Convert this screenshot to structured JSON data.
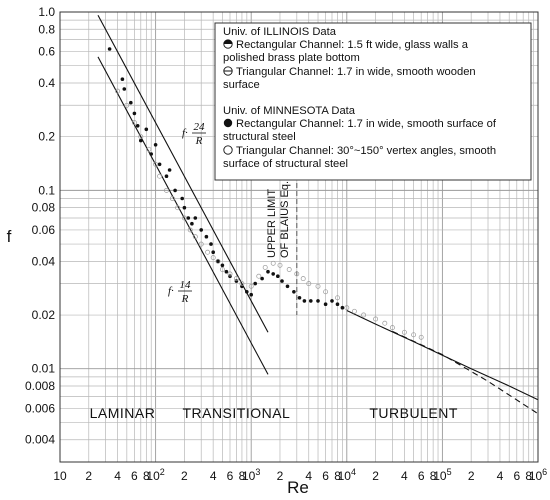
{
  "chart_data": {
    "type": "scatter",
    "x_scale": "log",
    "y_scale": "log",
    "xlabel": "Re",
    "ylabel": "f",
    "xlim": [
      10,
      1000000
    ],
    "ylim": [
      0.003,
      1.0
    ],
    "grid": true,
    "x_tick_labels": [
      {
        "value": 10,
        "label": "10"
      },
      {
        "value": 20,
        "label": "2"
      },
      {
        "value": 40,
        "label": "4"
      },
      {
        "value": 60,
        "label": "6"
      },
      {
        "value": 80,
        "label": "8"
      },
      {
        "value": 100,
        "label": "10",
        "sup": "2"
      },
      {
        "value": 200,
        "label": "2"
      },
      {
        "value": 400,
        "label": "4"
      },
      {
        "value": 600,
        "label": "6"
      },
      {
        "value": 800,
        "label": "8"
      },
      {
        "value": 1000,
        "label": "10",
        "sup": "3"
      },
      {
        "value": 2000,
        "label": "2"
      },
      {
        "value": 4000,
        "label": "4"
      },
      {
        "value": 6000,
        "label": "6"
      },
      {
        "value": 8000,
        "label": "8"
      },
      {
        "value": 10000,
        "label": "10",
        "sup": "4"
      },
      {
        "value": 20000,
        "label": "2"
      },
      {
        "value": 40000,
        "label": "4"
      },
      {
        "value": 60000,
        "label": "6"
      },
      {
        "value": 80000,
        "label": "8"
      },
      {
        "value": 100000,
        "label": "10",
        "sup": "5"
      },
      {
        "value": 200000,
        "label": "2"
      },
      {
        "value": 400000,
        "label": "4"
      },
      {
        "value": 600000,
        "label": "6"
      },
      {
        "value": 800000,
        "label": "8"
      },
      {
        "value": 1000000,
        "label": "10",
        "sup": "6"
      }
    ],
    "y_tick_labels": [
      {
        "value": 1.0,
        "label": "1.0"
      },
      {
        "value": 0.8,
        "label": "0.8"
      },
      {
        "value": 0.6,
        "label": "0.6"
      },
      {
        "value": 0.4,
        "label": "0.4"
      },
      {
        "value": 0.2,
        "label": "0.2"
      },
      {
        "value": 0.1,
        "label": "0.1"
      },
      {
        "value": 0.08,
        "label": "0.08"
      },
      {
        "value": 0.06,
        "label": "0.06"
      },
      {
        "value": 0.04,
        "label": "0.04"
      },
      {
        "value": 0.02,
        "label": "0.02"
      },
      {
        "value": 0.01,
        "label": "0.01"
      },
      {
        "value": 0.008,
        "label": "0.008"
      },
      {
        "value": 0.006,
        "label": "0.006"
      },
      {
        "value": 0.004,
        "label": "0.004"
      }
    ],
    "curves": [
      {
        "id": "f24",
        "style": "solid",
        "points": [
          [
            25,
            0.96
          ],
          [
            1500,
            0.016
          ]
        ]
      },
      {
        "id": "f14",
        "style": "solid",
        "points": [
          [
            25,
            0.56
          ],
          [
            1500,
            0.0093
          ]
        ]
      },
      {
        "id": "blasius",
        "style": "solid",
        "points": [
          [
            10000,
            0.0212
          ],
          [
            20000,
            0.0178
          ],
          [
            50000,
            0.0142
          ],
          [
            100000,
            0.0119
          ],
          [
            200000,
            0.01
          ],
          [
            500000,
            0.008
          ],
          [
            1000000,
            0.0067
          ]
        ]
      },
      {
        "id": "turbulent",
        "style": "dashed",
        "points": [
          [
            30000,
            0.0162
          ],
          [
            100000,
            0.012
          ],
          [
            300000,
            0.0085
          ],
          [
            1000000,
            0.0056
          ]
        ]
      }
    ],
    "series": [
      {
        "name": "Univ. of MINNESOTA Rectangular Channel",
        "marker": "filled-circle",
        "points": [
          [
            33,
            0.62
          ],
          [
            45,
            0.42
          ],
          [
            47,
            0.37
          ],
          [
            55,
            0.31
          ],
          [
            60,
            0.27
          ],
          [
            65,
            0.23
          ],
          [
            70,
            0.19
          ],
          [
            80,
            0.22
          ],
          [
            90,
            0.16
          ],
          [
            100,
            0.18
          ],
          [
            110,
            0.14
          ],
          [
            130,
            0.12
          ],
          [
            140,
            0.13
          ],
          [
            160,
            0.1
          ],
          [
            190,
            0.09
          ],
          [
            200,
            0.08
          ],
          [
            220,
            0.07
          ],
          [
            240,
            0.065
          ],
          [
            260,
            0.07
          ],
          [
            300,
            0.06
          ],
          [
            340,
            0.055
          ],
          [
            380,
            0.05
          ],
          [
            400,
            0.045
          ],
          [
            450,
            0.04
          ],
          [
            500,
            0.038
          ],
          [
            550,
            0.035
          ],
          [
            600,
            0.033
          ],
          [
            700,
            0.031
          ],
          [
            800,
            0.029
          ],
          [
            900,
            0.027
          ],
          [
            1000,
            0.026
          ],
          [
            1100,
            0.03
          ],
          [
            1300,
            0.032
          ],
          [
            1500,
            0.035
          ],
          [
            1700,
            0.034
          ],
          [
            1900,
            0.033
          ],
          [
            2100,
            0.031
          ],
          [
            2400,
            0.029
          ],
          [
            2800,
            0.027
          ],
          [
            3200,
            0.025
          ],
          [
            3600,
            0.024
          ],
          [
            4200,
            0.024
          ],
          [
            5000,
            0.024
          ],
          [
            6000,
            0.023
          ],
          [
            7000,
            0.024
          ],
          [
            8000,
            0.023
          ],
          [
            9000,
            0.022
          ]
        ]
      },
      {
        "name": "Univ. of MINNESOTA Triangular Channel",
        "marker": "open-circle",
        "points": [
          [
            40,
            0.36
          ],
          [
            50,
            0.3
          ],
          [
            60,
            0.24
          ],
          [
            70,
            0.2
          ],
          [
            85,
            0.17
          ],
          [
            100,
            0.14
          ],
          [
            110,
            0.12
          ],
          [
            130,
            0.1
          ],
          [
            150,
            0.09
          ],
          [
            170,
            0.08
          ],
          [
            200,
            0.07
          ],
          [
            230,
            0.06
          ],
          [
            260,
            0.055
          ],
          [
            300,
            0.05
          ],
          [
            350,
            0.045
          ],
          [
            400,
            0.042
          ],
          [
            450,
            0.04
          ],
          [
            500,
            0.036
          ],
          [
            600,
            0.034
          ],
          [
            700,
            0.032
          ],
          [
            800,
            0.03
          ],
          [
            1000,
            0.029
          ],
          [
            1200,
            0.033
          ],
          [
            1400,
            0.037
          ],
          [
            1700,
            0.039
          ],
          [
            2000,
            0.038
          ],
          [
            2500,
            0.036
          ],
          [
            3000,
            0.034
          ],
          [
            3500,
            0.032
          ],
          [
            4000,
            0.03
          ],
          [
            5000,
            0.029
          ],
          [
            6000,
            0.027
          ],
          [
            8000,
            0.025
          ],
          [
            10000,
            0.022
          ],
          [
            12000,
            0.021
          ],
          [
            15000,
            0.02
          ],
          [
            20000,
            0.019
          ],
          [
            25000,
            0.018
          ],
          [
            30000,
            0.017
          ],
          [
            40000,
            0.016
          ],
          [
            50000,
            0.0155
          ],
          [
            60000,
            0.015
          ]
        ]
      }
    ],
    "legend": {
      "placement": "top-right",
      "lines": [
        {
          "marker": "none",
          "text": "Univ. of ILLINOIS Data"
        },
        {
          "marker": "half-top",
          "text": "Rectangular Channel: 1.5 ft wide, glass walls a"
        },
        {
          "marker": "none",
          "text": "polished brass plate bottom"
        },
        {
          "marker": "theta",
          "text": "Triangular Channel: 1.7 in wide, smooth wooden"
        },
        {
          "marker": "none",
          "text": "surface"
        },
        {
          "marker": "none",
          "text": "Univ. of MINNESOTA Data"
        },
        {
          "marker": "filled",
          "text": "Rectangular Channel: 1.7 in wide, smooth surface of"
        },
        {
          "marker": "none",
          "text": "structural steel"
        },
        {
          "marker": "open",
          "text": "Triangular Channel: 30°~150° vertex angles, smooth"
        },
        {
          "marker": "none",
          "text": "surface of structural steel"
        }
      ]
    },
    "annotations": {
      "f24": {
        "prefix": "f·",
        "numerator": "24",
        "denominator": "R"
      },
      "f14": {
        "prefix": "f·",
        "numerator": "14",
        "denominator": "R"
      },
      "blasius": [
        "UPPER LIMIT",
        "OF BLAIUS Eq."
      ],
      "regions": [
        {
          "label": "LAMINAR",
          "x": 45
        },
        {
          "label": "TRANSITIONAL",
          "x": 700
        },
        {
          "label": "TURBULENT",
          "x": 50000
        }
      ]
    }
  }
}
